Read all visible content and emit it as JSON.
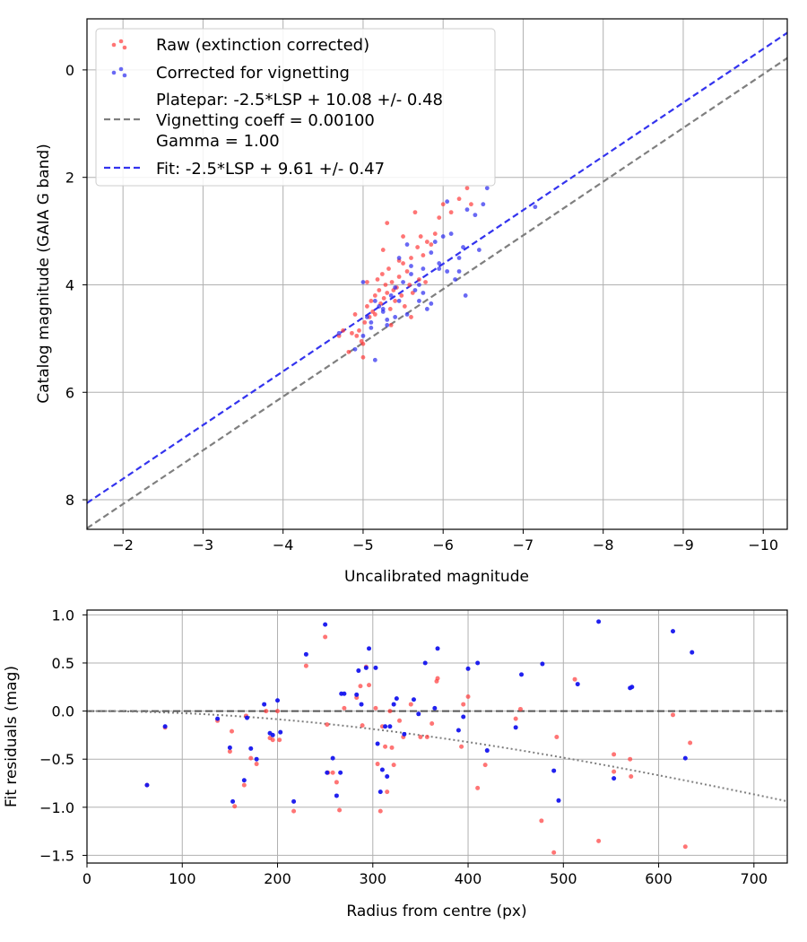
{
  "chart_data": [
    {
      "type": "scatter",
      "xlabel": "Uncalibrated magnitude",
      "ylabel": "Catalog magnitude (GAIA G band)",
      "xlim": [
        -1.55,
        -10.3
      ],
      "ylim": [
        8.55,
        -0.95
      ],
      "x_ticks": [
        -2,
        -3,
        -4,
        -5,
        -6,
        -7,
        -8,
        -9,
        -10
      ],
      "x_tick_labels": [
        "−2",
        "−3",
        "−4",
        "−5",
        "−6",
        "−7",
        "−8",
        "−9",
        "−10"
      ],
      "y_ticks": [
        0,
        2,
        4,
        6,
        8
      ],
      "y_tick_labels": [
        "0",
        "2",
        "4",
        "6",
        "8"
      ],
      "grid": true,
      "legend_position": "upper-left",
      "legend": {
        "raw": "Raw (extinction corrected)",
        "corrected": "Corrected for vignetting",
        "platepar_line1": "Platepar: -2.5*LSP + 10.08 +/- 0.48",
        "platepar_line2": "Vignetting coeff = 0.00100",
        "platepar_line3": "Gamma = 1.00",
        "fit": "Fit: -2.5*LSP + 9.61 +/- 0.47"
      },
      "lines": [
        {
          "name": "Platepar",
          "color": "#7f7f7f",
          "dash": "dashed",
          "offset": 10.08,
          "slope": 1
        },
        {
          "name": "Fit",
          "color": "#3333ee",
          "dash": "dashed",
          "offset": 9.61,
          "slope": 1
        }
      ],
      "series": [
        {
          "name": "Raw (extinction corrected)",
          "color": "#ff3b3b",
          "x": [
            -4.82,
            -4.86,
            -4.9,
            -4.95,
            -4.98,
            -5.0,
            -5.02,
            -5.05,
            -5.08,
            -5.1,
            -5.12,
            -5.15,
            -5.18,
            -5.2,
            -5.22,
            -5.24,
            -5.26,
            -5.28,
            -5.3,
            -5.32,
            -5.34,
            -5.36,
            -5.38,
            -5.4,
            -5.42,
            -5.45,
            -5.48,
            -5.5,
            -5.52,
            -5.55,
            -5.58,
            -5.6,
            -5.62,
            -5.65,
            -5.68,
            -5.7,
            -5.72,
            -5.75,
            -5.8,
            -5.85,
            -5.9,
            -5.95,
            -6.0,
            -6.1,
            -6.2,
            -6.3,
            -4.75,
            -4.7,
            -5.0,
            -5.15,
            -5.3,
            -5.45,
            -5.6,
            -5.78,
            -5.25,
            -5.05,
            -4.92,
            -6.35,
            -5.35,
            -5.5
          ],
          "y": [
            5.25,
            4.9,
            4.55,
            4.85,
            5.05,
            5.1,
            4.7,
            4.4,
            4.6,
            4.3,
            4.5,
            4.2,
            3.9,
            4.1,
            4.35,
            3.8,
            4.25,
            4.0,
            4.15,
            3.7,
            4.45,
            3.95,
            4.1,
            4.3,
            4.05,
            3.85,
            4.2,
            3.6,
            4.4,
            3.75,
            4.0,
            3.5,
            4.15,
            2.65,
            3.3,
            3.9,
            3.1,
            3.45,
            3.2,
            3.25,
            3.05,
            2.75,
            2.5,
            2.65,
            2.4,
            2.2,
            4.85,
            4.95,
            5.35,
            4.55,
            2.85,
            3.55,
            4.6,
            3.95,
            3.35,
            3.95,
            4.95,
            2.5,
            4.75,
            3.1
          ]
        },
        {
          "name": "Corrected for vignetting",
          "color": "#2a2af0",
          "x": [
            -4.7,
            -4.9,
            -5.0,
            -5.05,
            -5.1,
            -5.15,
            -5.2,
            -5.25,
            -5.3,
            -5.35,
            -5.4,
            -5.45,
            -5.5,
            -5.55,
            -5.6,
            -5.65,
            -5.7,
            -5.75,
            -5.8,
            -5.85,
            -5.9,
            -5.95,
            -6.0,
            -6.05,
            -6.1,
            -6.15,
            -6.2,
            -6.25,
            -6.3,
            -6.4,
            -6.45,
            -6.5,
            -6.55,
            -7.15,
            -5.1,
            -5.25,
            -5.4,
            -5.55,
            -5.7,
            -5.85,
            -6.2,
            -5.0,
            -5.15,
            -5.45,
            -5.6,
            -5.75,
            -5.95,
            -5.3,
            -6.05,
            -6.28
          ],
          "y": [
            4.9,
            5.2,
            4.95,
            4.6,
            4.8,
            5.4,
            4.4,
            4.5,
            4.75,
            4.2,
            4.6,
            4.3,
            3.95,
            4.55,
            3.8,
            4.1,
            4.3,
            3.7,
            4.45,
            3.4,
            3.2,
            3.6,
            3.1,
            3.75,
            3.05,
            3.9,
            3.5,
            3.3,
            2.6,
            2.7,
            3.35,
            2.5,
            2.2,
            2.55,
            4.7,
            4.45,
            4.05,
            3.25,
            4.0,
            4.35,
            3.75,
            3.95,
            4.3,
            3.5,
            3.65,
            4.15,
            3.7,
            4.65,
            2.45,
            4.2
          ]
        }
      ]
    },
    {
      "type": "scatter",
      "xlabel": "Radius from centre (px)",
      "ylabel": "Fit residuals (mag)",
      "xlim": [
        0,
        735
      ],
      "ylim": [
        -1.58,
        1.05
      ],
      "x_ticks": [
        0,
        100,
        200,
        300,
        400,
        500,
        600,
        700
      ],
      "x_tick_labels": [
        "0",
        "100",
        "200",
        "300",
        "400",
        "500",
        "600",
        "700"
      ],
      "y_ticks": [
        1.0,
        0.5,
        0.0,
        -0.5,
        -1.0,
        -1.5
      ],
      "y_tick_labels": [
        "1.0",
        "0.5",
        "0.0",
        "−0.5",
        "−1.0",
        "−1.5"
      ],
      "grid": true,
      "reference_line": {
        "y": 0,
        "color": "#555555",
        "dash": "dashed"
      },
      "vignetting_curve": {
        "coeff": 0.001,
        "color": "#7f7f7f",
        "dash": "dotted"
      },
      "series": [
        {
          "name": "Raw (extinction corrected)",
          "color": "#ff3b3b",
          "x": [
            63,
            82,
            137,
            150,
            152,
            155,
            165,
            167,
            172,
            178,
            188,
            192,
            195,
            200,
            202,
            217,
            230,
            250,
            252,
            253,
            258,
            262,
            265,
            270,
            283,
            287,
            289,
            293,
            296,
            303,
            305,
            308,
            310,
            313,
            315,
            318,
            320,
            322,
            328,
            332,
            340,
            350,
            357,
            362,
            367,
            368,
            393,
            395,
            400,
            410,
            418,
            450,
            455,
            477,
            490,
            493,
            512,
            537,
            553,
            553,
            570,
            571,
            615,
            628,
            633
          ],
          "y": [
            -0.77,
            -0.17,
            -0.1,
            -0.42,
            -0.21,
            -0.99,
            -0.77,
            -0.05,
            -0.49,
            -0.55,
            0.0,
            -0.28,
            -0.3,
            0.0,
            -0.3,
            -1.04,
            0.47,
            0.77,
            -0.14,
            -0.64,
            -0.64,
            -0.74,
            -1.03,
            0.03,
            0.14,
            0.26,
            -0.15,
            0.46,
            0.27,
            0.03,
            -0.55,
            -1.04,
            -0.16,
            -0.37,
            -0.84,
            0.0,
            -0.38,
            -0.56,
            -0.1,
            -0.27,
            0.07,
            -0.27,
            -0.27,
            -0.13,
            0.31,
            0.34,
            -0.37,
            0.07,
            0.15,
            -0.8,
            -0.56,
            -0.08,
            0.02,
            -1.14,
            -1.47,
            -0.27,
            0.33,
            -1.35,
            -0.63,
            -0.45,
            -0.5,
            -0.68,
            -0.04,
            -1.41,
            -0.33
          ]
        },
        {
          "name": "Corrected for vignetting",
          "color": "#1515ee",
          "x": [
            63,
            82,
            137,
            150,
            153,
            165,
            168,
            172,
            178,
            186,
            192,
            195,
            200,
            203,
            217,
            230,
            250,
            252,
            258,
            262,
            266,
            267,
            270,
            283,
            285,
            288,
            293,
            296,
            303,
            305,
            308,
            310,
            313,
            315,
            318,
            322,
            325,
            333,
            343,
            348,
            355,
            365,
            368,
            390,
            395,
            400,
            410,
            420,
            450,
            456,
            478,
            490,
            495,
            515,
            537,
            553,
            570,
            572,
            615,
            628,
            635
          ],
          "y": [
            -0.77,
            -0.16,
            -0.08,
            -0.38,
            -0.94,
            -0.72,
            -0.07,
            -0.39,
            -0.5,
            0.07,
            -0.23,
            -0.25,
            0.11,
            -0.22,
            -0.94,
            0.59,
            0.9,
            -0.64,
            -0.49,
            -0.88,
            -0.64,
            0.18,
            0.18,
            0.17,
            0.42,
            0.07,
            0.45,
            0.65,
            0.45,
            -0.34,
            -0.84,
            -0.61,
            -0.16,
            -0.68,
            -0.16,
            0.07,
            0.13,
            -0.24,
            0.12,
            -0.03,
            0.5,
            0.03,
            0.65,
            -0.2,
            -0.06,
            0.44,
            0.5,
            -0.41,
            -0.17,
            0.38,
            0.49,
            -0.62,
            -0.93,
            0.28,
            0.93,
            -0.7,
            0.24,
            0.25,
            0.83,
            -0.49,
            0.61
          ]
        }
      ]
    }
  ]
}
